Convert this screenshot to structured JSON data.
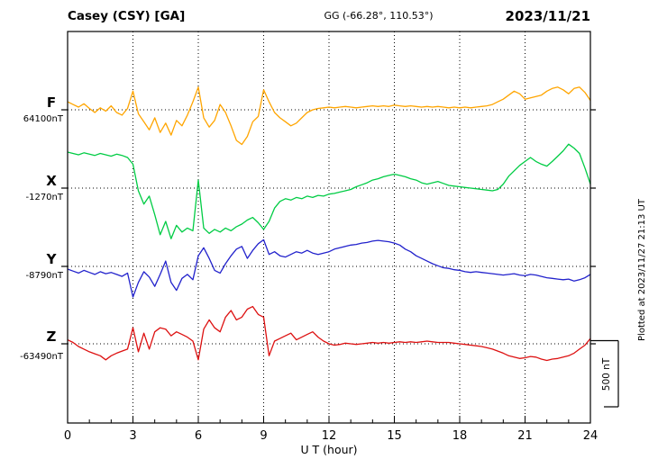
{
  "header": {
    "station": "Casey (CSY)  [GA]",
    "coords": "GG (-66.28°, 110.53°)",
    "date": "2023/11/21"
  },
  "side": {
    "plotted_at": "Plotted at 2023/11/27 21:13 UT",
    "scale_label": "500 nT"
  },
  "axis": {
    "xlabel": "U T (hour)",
    "ticks": [
      0,
      3,
      6,
      9,
      12,
      15,
      18,
      21,
      24
    ],
    "x_range": [
      0,
      24
    ]
  },
  "chart_data": {
    "type": "line",
    "title": "Casey (CSY) [GA] magnetogram 2023/11/21",
    "xlabel": "U T (hour)",
    "x_range": [
      0,
      24
    ],
    "x_step_hours": 0.25,
    "scale_bar_nT": 500,
    "grid": "dotted vertical every 3 h, dotted horizontal at each component baseline",
    "series": [
      {
        "name": "F",
        "color": "#ffa500",
        "baseline_label": "64100nT",
        "baseline_nT": 64100,
        "offsets_nT": [
          60,
          40,
          20,
          45,
          10,
          -20,
          15,
          -10,
          30,
          -20,
          -40,
          10,
          140,
          -30,
          -90,
          -150,
          -60,
          -170,
          -100,
          -190,
          -80,
          -120,
          -40,
          60,
          170,
          -60,
          -130,
          -80,
          40,
          -20,
          -120,
          -230,
          -260,
          -200,
          -90,
          -50,
          150,
          60,
          -20,
          -60,
          -90,
          -120,
          -100,
          -60,
          -20,
          0,
          10,
          15,
          20,
          15,
          20,
          25,
          20,
          15,
          20,
          25,
          30,
          25,
          30,
          25,
          35,
          30,
          25,
          30,
          25,
          20,
          25,
          20,
          25,
          20,
          15,
          20,
          15,
          20,
          15,
          20,
          25,
          30,
          40,
          60,
          80,
          110,
          140,
          120,
          80,
          90,
          100,
          110,
          140,
          160,
          170,
          150,
          120,
          160,
          170,
          130,
          70
        ]
      },
      {
        "name": "X",
        "color": "#00cc44",
        "baseline_label": "-1270nT",
        "baseline_nT": -1270,
        "offsets_nT": [
          270,
          260,
          250,
          265,
          255,
          245,
          260,
          250,
          240,
          255,
          245,
          230,
          180,
          -20,
          -120,
          -60,
          -200,
          -350,
          -250,
          -380,
          -280,
          -330,
          -300,
          -320,
          60,
          -300,
          -340,
          -310,
          -330,
          -300,
          -320,
          -290,
          -270,
          -240,
          -220,
          -260,
          -310,
          -250,
          -150,
          -100,
          -80,
          -90,
          -70,
          -80,
          -60,
          -70,
          -55,
          -60,
          -45,
          -40,
          -30,
          -20,
          -10,
          10,
          25,
          40,
          60,
          70,
          85,
          95,
          105,
          95,
          85,
          70,
          60,
          40,
          30,
          40,
          50,
          35,
          20,
          15,
          10,
          5,
          0,
          -5,
          -10,
          -15,
          -20,
          -10,
          30,
          90,
          130,
          170,
          200,
          230,
          200,
          180,
          165,
          200,
          240,
          280,
          330,
          300,
          260,
          150,
          30
        ]
      },
      {
        "name": "Y",
        "color": "#2222cc",
        "baseline_label": "-8790nT",
        "baseline_nT": -8790,
        "offsets_nT": [
          -20,
          -35,
          -50,
          -30,
          -45,
          -60,
          -40,
          -55,
          -45,
          -60,
          -75,
          -50,
          -230,
          -120,
          -40,
          -80,
          -150,
          -60,
          40,
          -120,
          -180,
          -90,
          -60,
          -100,
          80,
          140,
          60,
          -30,
          -50,
          20,
          80,
          130,
          150,
          60,
          120,
          170,
          200,
          90,
          110,
          80,
          70,
          90,
          110,
          100,
          120,
          100,
          90,
          100,
          110,
          130,
          140,
          150,
          160,
          165,
          175,
          180,
          190,
          195,
          190,
          185,
          175,
          160,
          130,
          110,
          80,
          60,
          40,
          20,
          5,
          -10,
          -15,
          -25,
          -30,
          -40,
          -45,
          -40,
          -45,
          -50,
          -55,
          -60,
          -65,
          -60,
          -55,
          -65,
          -70,
          -60,
          -65,
          -75,
          -85,
          -90,
          -95,
          -100,
          -95,
          -110,
          -100,
          -85,
          -60
        ]
      },
      {
        "name": "Z",
        "color": "#dd1111",
        "baseline_label": "-63490nT",
        "baseline_nT": -63490,
        "offsets_nT": [
          30,
          10,
          -20,
          -40,
          -60,
          -75,
          -90,
          -120,
          -90,
          -70,
          -55,
          -40,
          120,
          -60,
          80,
          -40,
          90,
          120,
          110,
          60,
          90,
          70,
          50,
          20,
          -120,
          110,
          180,
          120,
          90,
          200,
          250,
          180,
          200,
          260,
          280,
          220,
          200,
          -90,
          20,
          40,
          60,
          80,
          30,
          50,
          70,
          90,
          50,
          20,
          0,
          -10,
          -5,
          5,
          0,
          -5,
          0,
          5,
          10,
          5,
          10,
          5,
          10,
          15,
          10,
          15,
          10,
          15,
          20,
          15,
          10,
          10,
          10,
          5,
          0,
          -5,
          -10,
          -15,
          -20,
          -30,
          -40,
          -55,
          -70,
          -90,
          -100,
          -110,
          -105,
          -95,
          -100,
          -115,
          -125,
          -115,
          -110,
          -100,
          -90,
          -70,
          -40,
          -10,
          40
        ]
      }
    ]
  }
}
